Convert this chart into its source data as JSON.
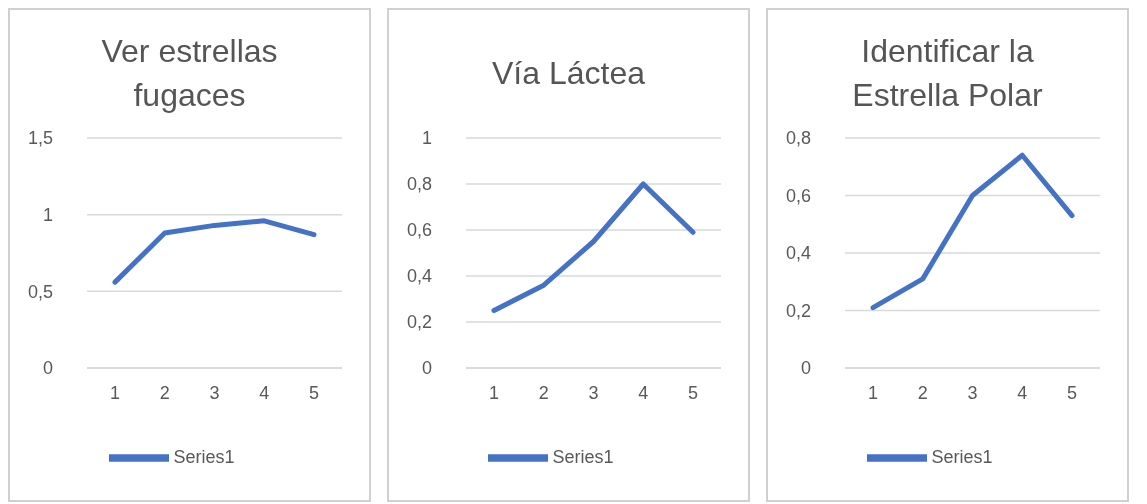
{
  "chart_data": [
    {
      "type": "line",
      "title": "Ver estrellas fugaces",
      "categories": [
        "1",
        "2",
        "3",
        "4",
        "5"
      ],
      "series": [
        {
          "name": "Series1",
          "color": "#4472c4",
          "values": [
            0.56,
            0.88,
            0.93,
            0.96,
            0.87
          ]
        }
      ],
      "ylim": [
        0,
        1.5
      ],
      "yticks": [
        {
          "value": 0,
          "label": "0"
        },
        {
          "value": 0.5,
          "label": "0,5"
        },
        {
          "value": 1,
          "label": "1"
        },
        {
          "value": 1.5,
          "label": "1,5"
        }
      ],
      "grid": "y",
      "legend": "bottom",
      "marker": "none",
      "line_style": "solid"
    },
    {
      "type": "line",
      "title": "Vía Láctea",
      "categories": [
        "1",
        "2",
        "3",
        "4",
        "5"
      ],
      "series": [
        {
          "name": "Series1",
          "color": "#4472c4",
          "values": [
            0.25,
            0.36,
            0.55,
            0.8,
            0.59
          ]
        }
      ],
      "ylim": [
        0,
        1
      ],
      "yticks": [
        {
          "value": 0,
          "label": "0"
        },
        {
          "value": 0.2,
          "label": "0,2"
        },
        {
          "value": 0.4,
          "label": "0,4"
        },
        {
          "value": 0.6,
          "label": "0,6"
        },
        {
          "value": 0.8,
          "label": "0,8"
        },
        {
          "value": 1,
          "label": "1"
        }
      ],
      "grid": "y",
      "legend": "bottom",
      "marker": "none",
      "line_style": "solid"
    },
    {
      "type": "line",
      "title": "Identificar la Estrella Polar",
      "categories": [
        "1",
        "2",
        "3",
        "4",
        "5"
      ],
      "series": [
        {
          "name": "Series1",
          "color": "#4472c4",
          "values": [
            0.21,
            0.31,
            0.6,
            0.74,
            0.53
          ]
        }
      ],
      "ylim": [
        0,
        0.8
      ],
      "yticks": [
        {
          "value": 0,
          "label": "0"
        },
        {
          "value": 0.2,
          "label": "0,2"
        },
        {
          "value": 0.4,
          "label": "0,4"
        },
        {
          "value": 0.6,
          "label": "0,6"
        },
        {
          "value": 0.8,
          "label": "0,8"
        }
      ],
      "grid": "y",
      "legend": "bottom",
      "marker": "none",
      "line_style": "solid"
    }
  ]
}
